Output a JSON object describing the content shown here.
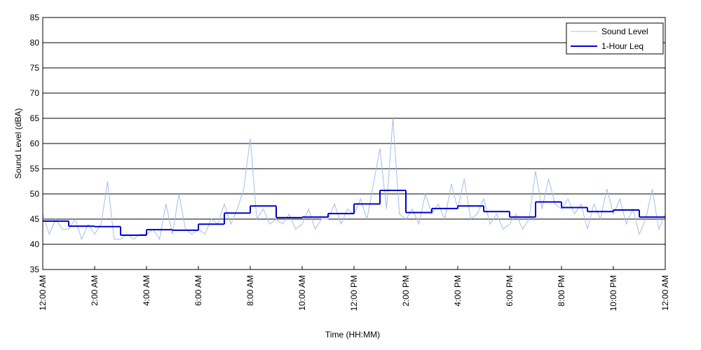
{
  "chart_data": {
    "type": "line",
    "xlabel": "Time (HH:MM)",
    "ylabel": "Sound Level (dBA)",
    "xlim": [
      0,
      24
    ],
    "ylim": [
      35,
      85
    ],
    "xticks": [
      {
        "value": 0,
        "label": "12:00 AM"
      },
      {
        "value": 2,
        "label": "2:00 AM"
      },
      {
        "value": 4,
        "label": "4:00 AM"
      },
      {
        "value": 6,
        "label": "6:00 AM"
      },
      {
        "value": 8,
        "label": "8:00 AM"
      },
      {
        "value": 10,
        "label": "10:00 AM"
      },
      {
        "value": 12,
        "label": "12:00 PM"
      },
      {
        "value": 14,
        "label": "2:00 PM"
      },
      {
        "value": 16,
        "label": "4:00 PM"
      },
      {
        "value": 18,
        "label": "6:00 PM"
      },
      {
        "value": 20,
        "label": "8:00 PM"
      },
      {
        "value": 22,
        "label": "10:00 PM"
      },
      {
        "value": 24,
        "label": "12:00 AM"
      }
    ],
    "yticks": [
      35,
      40,
      45,
      50,
      55,
      60,
      65,
      70,
      75,
      80,
      85
    ],
    "grid": true,
    "legend": "upper right",
    "series": [
      {
        "name": "Sound Level",
        "color": "#a3bdea",
        "x": [
          0,
          0.25,
          0.5,
          0.75,
          1,
          1.25,
          1.5,
          1.75,
          2,
          2.25,
          2.5,
          2.75,
          3,
          3.25,
          3.5,
          3.75,
          4,
          4.25,
          4.5,
          4.75,
          5,
          5.25,
          5.5,
          5.75,
          6,
          6.25,
          6.5,
          6.75,
          7,
          7.25,
          7.5,
          7.75,
          8,
          8.25,
          8.5,
          8.75,
          9,
          9.25,
          9.5,
          9.75,
          10,
          10.25,
          10.5,
          10.75,
          11,
          11.25,
          11.5,
          11.75,
          12,
          12.25,
          12.5,
          12.75,
          13,
          13.25,
          13.5,
          13.75,
          14,
          14.25,
          14.5,
          14.75,
          15,
          15.25,
          15.5,
          15.75,
          16,
          16.25,
          16.5,
          16.75,
          17,
          17.25,
          17.5,
          17.75,
          18,
          18.25,
          18.5,
          18.75,
          19,
          19.25,
          19.5,
          19.75,
          20,
          20.25,
          20.5,
          20.75,
          21,
          21.25,
          21.5,
          21.75,
          22,
          22.25,
          22.5,
          22.75,
          23,
          23.25,
          23.5,
          23.75,
          24
        ],
        "values": [
          46,
          42,
          45,
          43,
          43,
          45,
          41,
          44,
          42,
          44,
          52.5,
          41,
          41,
          42,
          41,
          42,
          42,
          43,
          41,
          48,
          42,
          50,
          43,
          42,
          43,
          42,
          45,
          44,
          48,
          44,
          47,
          51,
          61,
          45,
          47,
          44,
          45,
          44,
          46,
          43,
          44,
          47,
          43,
          45,
          45,
          48,
          44,
          47,
          46,
          49,
          45,
          52,
          59,
          47,
          65,
          46,
          45,
          47,
          44,
          50,
          46,
          48,
          45,
          52,
          47,
          53,
          45,
          46,
          49,
          44,
          46,
          43,
          44,
          46,
          43,
          45,
          54.5,
          47,
          53,
          48,
          47,
          49,
          46,
          48,
          43,
          48,
          45,
          51,
          46,
          49,
          44,
          47,
          42,
          45,
          51,
          43,
          46
        ]
      },
      {
        "name": "1-Hour Leq",
        "color": "#0000cc",
        "step": true,
        "bins": [
          0,
          1,
          2,
          3,
          4,
          5,
          6,
          7,
          8,
          9,
          10,
          11,
          12,
          13,
          14,
          15,
          16,
          17,
          18,
          19,
          20,
          21,
          22,
          23,
          24
        ],
        "values": [
          44.6,
          43.6,
          43.5,
          41.8,
          42.9,
          42.8,
          44.0,
          46.2,
          47.6,
          45.3,
          45.4,
          46.1,
          48.0,
          50.7,
          46.3,
          47.1,
          47.6,
          46.5,
          45.4,
          48.4,
          47.3,
          46.5,
          46.8,
          45.4
        ]
      }
    ]
  }
}
